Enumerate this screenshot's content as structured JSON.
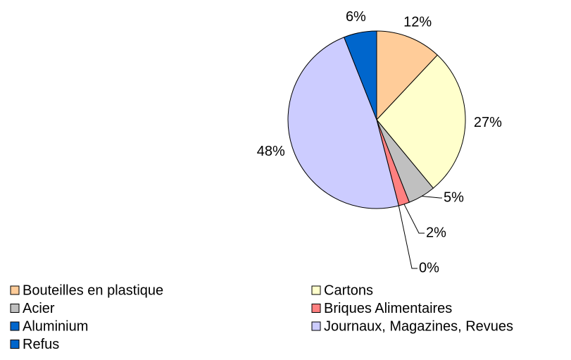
{
  "chart_data": {
    "type": "pie",
    "categories": [
      "Bouteilles en plastique",
      "Cartons",
      "Acier",
      "Briques Alimentaires",
      "Aluminium",
      "Journaux, Magazines, Revues",
      "Refus"
    ],
    "values": [
      12,
      27,
      5,
      2,
      0,
      48,
      6
    ],
    "value_labels": [
      "12%",
      "27%",
      "5%",
      "2%",
      "0%",
      "48%",
      "6%"
    ],
    "colors": [
      "#ffcc99",
      "#ffffcc",
      "#c0c0c0",
      "#ff8080",
      "#0066cc",
      "#ccccff",
      "#0066cc"
    ],
    "legend": "bottom"
  }
}
